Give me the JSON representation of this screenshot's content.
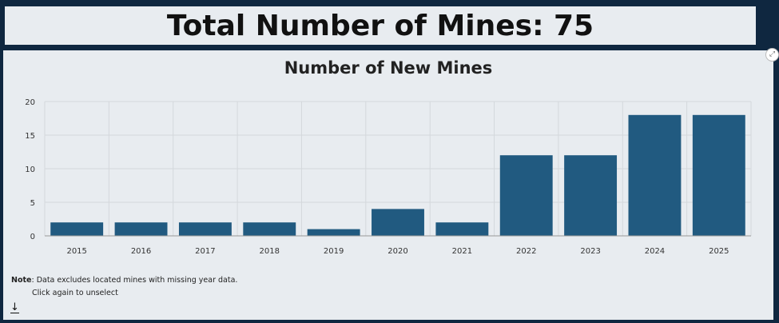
{
  "header": {
    "title": "Total Number of Mines: 75"
  },
  "chart_data": {
    "type": "bar",
    "title": "Number of New Mines",
    "categories": [
      "2015",
      "2016",
      "2017",
      "2018",
      "2019",
      "2020",
      "2021",
      "2022",
      "2023",
      "2024",
      "2025"
    ],
    "values": [
      2,
      2,
      2,
      2,
      1,
      4,
      2,
      12,
      12,
      18,
      18
    ],
    "xlabel": "",
    "ylabel": "",
    "ylim": [
      0,
      20
    ],
    "yticks": [
      0,
      5,
      10,
      15,
      20
    ],
    "grid": true,
    "bar_color": "#215a80"
  },
  "footer": {
    "note_label": "Note",
    "note_text": ": Data excludes located mines with missing year data.",
    "hint": "Click again to unselect",
    "download_icon": "↓"
  },
  "controls": {
    "expand_icon": "⤢"
  }
}
